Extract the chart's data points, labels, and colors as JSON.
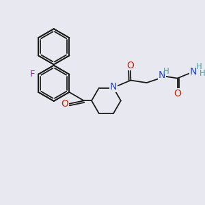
{
  "background_color": "#e8e8f0",
  "bond_color": "#1a1a1a",
  "N_color": "#2244cc",
  "O_color": "#cc2200",
  "F_color": "#cc00cc",
  "H_color": "#559999",
  "figsize": [
    3.0,
    3.0
  ],
  "dpi": 100,
  "xlim": [
    0,
    10
  ],
  "ylim": [
    0,
    10
  ]
}
